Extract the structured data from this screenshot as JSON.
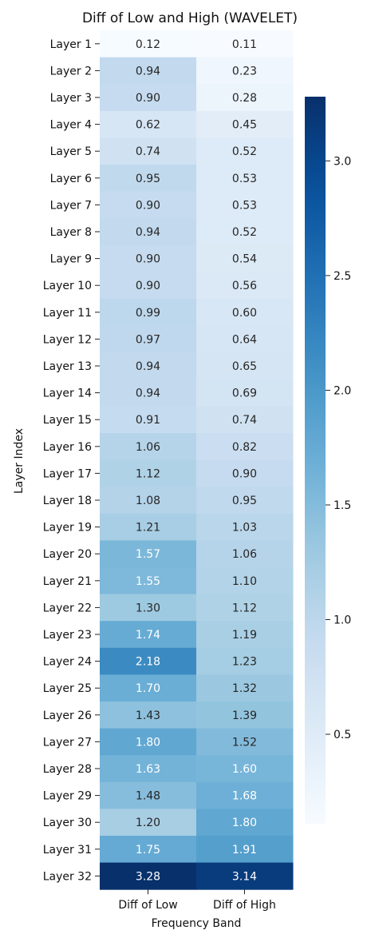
{
  "chart_data": {
    "type": "heatmap",
    "title": "Diff of Low and High (WAVELET)",
    "xlabel": "Frequency Band",
    "ylabel": "Layer Index",
    "columns": [
      "Diff of Low",
      "Diff of High"
    ],
    "rows": [
      "Layer 1",
      "Layer 2",
      "Layer 3",
      "Layer 4",
      "Layer 5",
      "Layer 6",
      "Layer 7",
      "Layer 8",
      "Layer 9",
      "Layer 10",
      "Layer 11",
      "Layer 12",
      "Layer 13",
      "Layer 14",
      "Layer 15",
      "Layer 16",
      "Layer 17",
      "Layer 18",
      "Layer 19",
      "Layer 20",
      "Layer 21",
      "Layer 22",
      "Layer 23",
      "Layer 24",
      "Layer 25",
      "Layer 26",
      "Layer 27",
      "Layer 28",
      "Layer 29",
      "Layer 30",
      "Layer 31",
      "Layer 32"
    ],
    "values": [
      [
        0.12,
        0.11
      ],
      [
        0.94,
        0.23
      ],
      [
        0.9,
        0.28
      ],
      [
        0.62,
        0.45
      ],
      [
        0.74,
        0.52
      ],
      [
        0.95,
        0.53
      ],
      [
        0.9,
        0.53
      ],
      [
        0.94,
        0.52
      ],
      [
        0.9,
        0.54
      ],
      [
        0.9,
        0.56
      ],
      [
        0.99,
        0.6
      ],
      [
        0.97,
        0.64
      ],
      [
        0.94,
        0.65
      ],
      [
        0.94,
        0.69
      ],
      [
        0.91,
        0.74
      ],
      [
        1.06,
        0.82
      ],
      [
        1.12,
        0.9
      ],
      [
        1.08,
        0.95
      ],
      [
        1.21,
        1.03
      ],
      [
        1.57,
        1.06
      ],
      [
        1.55,
        1.1
      ],
      [
        1.3,
        1.12
      ],
      [
        1.74,
        1.19
      ],
      [
        2.18,
        1.23
      ],
      [
        1.7,
        1.32
      ],
      [
        1.43,
        1.39
      ],
      [
        1.8,
        1.52
      ],
      [
        1.63,
        1.6
      ],
      [
        1.48,
        1.68
      ],
      [
        1.2,
        1.8
      ],
      [
        1.75,
        1.91
      ],
      [
        3.28,
        3.14
      ]
    ],
    "colorbar": {
      "colormap": "Blues",
      "range": [
        0.11,
        3.28
      ],
      "ticks": [
        0.5,
        1.0,
        1.5,
        2.0,
        2.5,
        3.0
      ],
      "tick_labels": [
        "0.5",
        "1.0",
        "1.5",
        "2.0",
        "2.5",
        "3.0"
      ]
    }
  }
}
